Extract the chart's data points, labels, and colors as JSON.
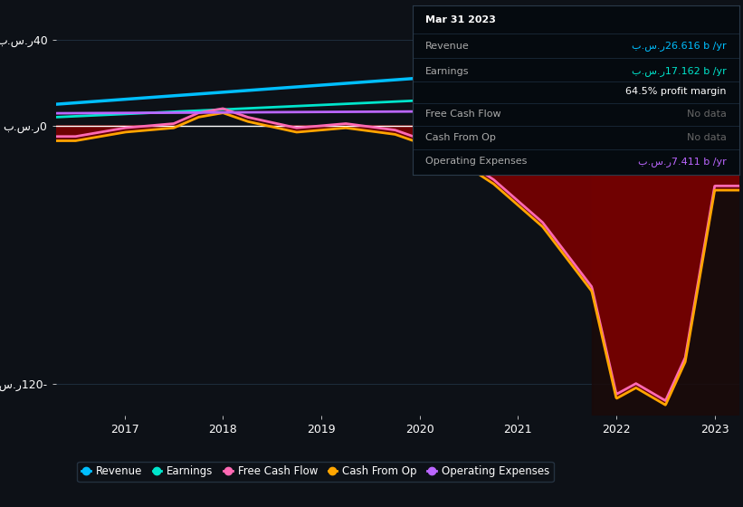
{
  "bg_color": "#0d1117",
  "plot_bg_color": "#0d1117",
  "ylim": [
    -135,
    55
  ],
  "yticks": [
    -120,
    0,
    40
  ],
  "ytick_labels": [
    "ب.س.ر120-",
    "ب.س.ر0",
    "ب.س.ر40"
  ],
  "xlabel_years": [
    "2017",
    "2018",
    "2019",
    "2020",
    "2021",
    "2022",
    "2023"
  ],
  "xlim_start": 2016.3,
  "xlim_end": 2023.25,
  "legend_items": [
    {
      "label": "Revenue",
      "color": "#00bfff"
    },
    {
      "label": "Earnings",
      "color": "#00e5cc"
    },
    {
      "label": "Free Cash Flow",
      "color": "#ff69b4"
    },
    {
      "label": "Cash From Op",
      "color": "#ffa500"
    },
    {
      "label": "Operating Expenses",
      "color": "#bb66ff"
    }
  ],
  "tooltip": {
    "date": "Mar 31 2023",
    "revenue_label": "Revenue",
    "revenue_value": "ب.س.ر26.616 b /yr",
    "revenue_color": "#00bfff",
    "earnings_label": "Earnings",
    "earnings_value": "ب.س.ر17.162 b /yr",
    "earnings_color": "#00e5cc",
    "margin_value": "64.5% profit margin",
    "fcf_label": "Free Cash Flow",
    "fcf_value": "No data",
    "cashop_label": "Cash From Op",
    "cashop_value": "No data",
    "opex_label": "Operating Expenses",
    "opex_value": "ب.س.ر7.411 b /yr",
    "opex_color": "#bb66ff",
    "nodata_color": "#666666"
  },
  "dark_overlay_x": 2021.75,
  "fill_color": "#7a0000",
  "dark_overlay_color": "#1a0a0a"
}
